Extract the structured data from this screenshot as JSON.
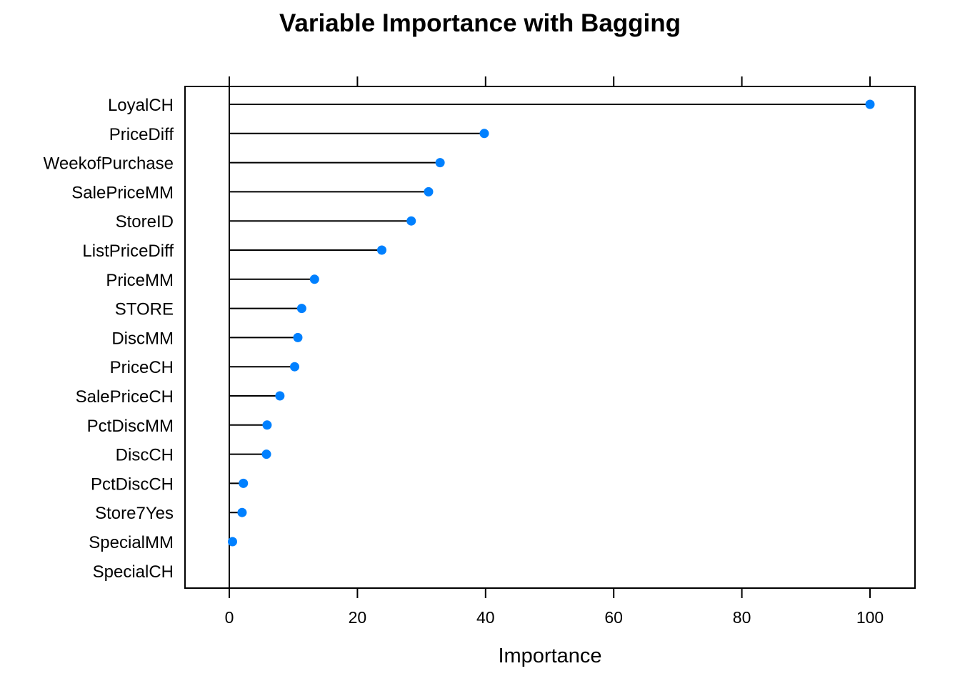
{
  "chart_data": {
    "type": "lollipop",
    "title": "Variable Importance with Bagging",
    "xlabel": "Importance",
    "ylabel": "",
    "xlim": [
      -7,
      107
    ],
    "xticks": [
      0,
      20,
      40,
      60,
      80,
      100
    ],
    "xtick_labels": [
      "0",
      "20",
      "40",
      "60",
      "80",
      "100"
    ],
    "grid": false,
    "legend": "none",
    "point_color": "#0080FF",
    "line_color": "#000000",
    "categories": [
      "LoyalCH",
      "PriceDiff",
      "WeekofPurchase",
      "SalePriceMM",
      "StoreID",
      "ListPriceDiff",
      "PriceMM",
      "STORE",
      "DiscMM",
      "PriceCH",
      "SalePriceCH",
      "PctDiscMM",
      "DiscCH",
      "PctDiscCH",
      "Store7Yes",
      "SpecialMM",
      "SpecialCH"
    ],
    "values": [
      100,
      39.8,
      32.9,
      31.1,
      28.4,
      23.8,
      13.3,
      11.3,
      10.7,
      10.2,
      7.9,
      5.9,
      5.8,
      2.2,
      2.0,
      0.5,
      0
    ]
  }
}
